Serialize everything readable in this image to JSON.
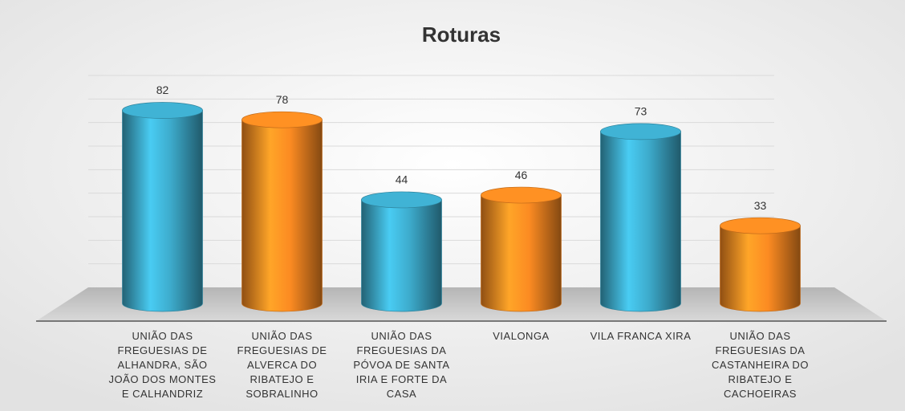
{
  "chart_data": {
    "type": "bar",
    "title": "Roturas",
    "categories": [
      "UNIÃO DAS FREGUESIAS DE ALHANDRA, SÃO JOÃO DOS MONTES E CALHANDRIZ",
      "UNIÃO DAS FREGUESIAS DE ALVERCA DO RIBATEJO E SOBRALINHO",
      "UNIÃO DAS FREGUESIAS DA PÓVOA DE SANTA IRIA E FORTE DA CASA",
      "VIALONGA",
      "VILA FRANCA XIRA",
      "UNIÃO DAS FREGUESIAS DA CASTANHEIRA DO RIBATEJO E CACHOEIRAS"
    ],
    "values": [
      82,
      78,
      44,
      46,
      73,
      33
    ],
    "colors": [
      "#3aa3c2",
      "#f08420",
      "#3aa3c2",
      "#f08420",
      "#3aa3c2",
      "#f08420"
    ],
    "ylim": [
      0,
      90
    ],
    "yticks": [
      0,
      10,
      20,
      30,
      40,
      50,
      60,
      70,
      80,
      90
    ],
    "grid": true
  }
}
